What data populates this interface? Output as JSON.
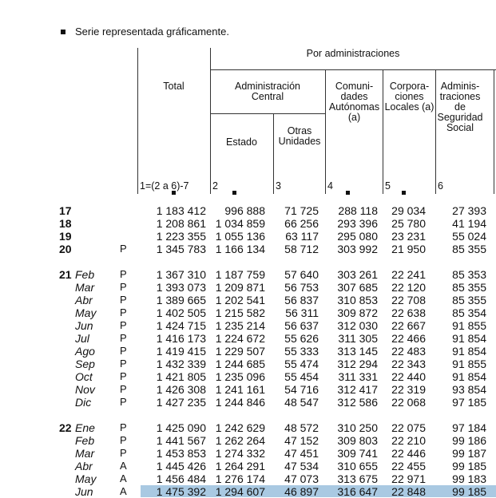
{
  "legend": {
    "icon": "black-square-icon",
    "text": "Serie representada gráficamente."
  },
  "header": {
    "total": "Total",
    "por_administraciones": "Por administraciones",
    "administracion_central": "Administración Central",
    "estado": "Estado",
    "otras_unidades": "Otras Unidades",
    "comunidades_autonomas": "Comuni- dades Autónomas (a)",
    "corporaciones_locales": "Corpora- ciones Locales (a)",
    "seguridad_social": "Adminis- traciones de Seguridad Social",
    "col_numbers": [
      "1=(2 a 6)-7",
      "2",
      "3",
      "4",
      "5",
      "6"
    ]
  },
  "highlight_color": "#a9c9e2",
  "rows": [
    {
      "year": "17",
      "month": "",
      "flag": "",
      "values": [
        "1 183 412",
        "996 888",
        "71 725",
        "288 118",
        "29 034",
        "27 393"
      ]
    },
    {
      "year": "18",
      "month": "",
      "flag": "",
      "values": [
        "1 208 861",
        "1 034 859",
        "66 256",
        "293 396",
        "25 780",
        "41 194"
      ]
    },
    {
      "year": "19",
      "month": "",
      "flag": "",
      "values": [
        "1 223 355",
        "1 055 136",
        "63 117",
        "295 080",
        "23 231",
        "55 024"
      ]
    },
    {
      "year": "20",
      "month": "",
      "flag": "P",
      "values": [
        "1 345 783",
        "1 166 134",
        "58 712",
        "303 992",
        "21 950",
        "85 355"
      ]
    },
    {
      "year": "21",
      "month": "Feb",
      "flag": "P",
      "values": [
        "1 367 310",
        "1 187 759",
        "57 640",
        "303 261",
        "22 241",
        "85 353"
      ]
    },
    {
      "year": "",
      "month": "Mar",
      "flag": "P",
      "values": [
        "1 393 073",
        "1 209 871",
        "56 753",
        "307 685",
        "22 120",
        "85 355"
      ]
    },
    {
      "year": "",
      "month": "Abr",
      "flag": "P",
      "values": [
        "1 389 665",
        "1 202 541",
        "56 837",
        "310 853",
        "22 708",
        "85 355"
      ]
    },
    {
      "year": "",
      "month": "May",
      "flag": "P",
      "values": [
        "1 402 505",
        "1 215 582",
        "56 311",
        "309 872",
        "22 638",
        "85 354"
      ]
    },
    {
      "year": "",
      "month": "Jun",
      "flag": "P",
      "values": [
        "1 424 715",
        "1 235 214",
        "56 637",
        "312 030",
        "22 667",
        "91 855"
      ]
    },
    {
      "year": "",
      "month": "Jul",
      "flag": "P",
      "values": [
        "1 416 173",
        "1 224 672",
        "55 626",
        "311 305",
        "22 466",
        "91 854"
      ]
    },
    {
      "year": "",
      "month": "Ago",
      "flag": "P",
      "values": [
        "1 419 415",
        "1 229 507",
        "55 333",
        "313 145",
        "22 483",
        "91 854"
      ]
    },
    {
      "year": "",
      "month": "Sep",
      "flag": "P",
      "values": [
        "1 432 339",
        "1 244 685",
        "55 474",
        "312 294",
        "22 343",
        "91 855"
      ]
    },
    {
      "year": "",
      "month": "Oct",
      "flag": "P",
      "values": [
        "1 421 805",
        "1 235 096",
        "55 454",
        "311 331",
        "22 440",
        "91 854"
      ]
    },
    {
      "year": "",
      "month": "Nov",
      "flag": "P",
      "values": [
        "1 426 308",
        "1 241 161",
        "54 716",
        "312 417",
        "22 319",
        "93 854"
      ]
    },
    {
      "year": "",
      "month": "Dic",
      "flag": "P",
      "values": [
        "1 427 235",
        "1 244 846",
        "48 547",
        "312 586",
        "22 068",
        "97 185"
      ]
    },
    {
      "year": "22",
      "month": "Ene",
      "flag": "P",
      "values": [
        "1 425 090",
        "1 242 629",
        "48 572",
        "310 250",
        "22 075",
        "97 184"
      ]
    },
    {
      "year": "",
      "month": "Feb",
      "flag": "P",
      "values": [
        "1 441 567",
        "1 262 264",
        "47 152",
        "309 803",
        "22 210",
        "99 186"
      ]
    },
    {
      "year": "",
      "month": "Mar",
      "flag": "P",
      "values": [
        "1 453 853",
        "1 274 332",
        "47 451",
        "309 741",
        "22 446",
        "99 187"
      ]
    },
    {
      "year": "",
      "month": "Abr",
      "flag": "A",
      "values": [
        "1 445 426",
        "1 264 291",
        "47 534",
        "310 655",
        "22 455",
        "99 185"
      ]
    },
    {
      "year": "",
      "month": "May",
      "flag": "A",
      "values": [
        "1 456 484",
        "1 276 174",
        "47 073",
        "313 675",
        "22 971",
        "99 183"
      ]
    },
    {
      "year": "",
      "month": "Jun",
      "flag": "A",
      "values": [
        "1 475 392",
        "1 294 607",
        "46 897",
        "316 647",
        "22 848",
        "99 185"
      ]
    }
  ]
}
